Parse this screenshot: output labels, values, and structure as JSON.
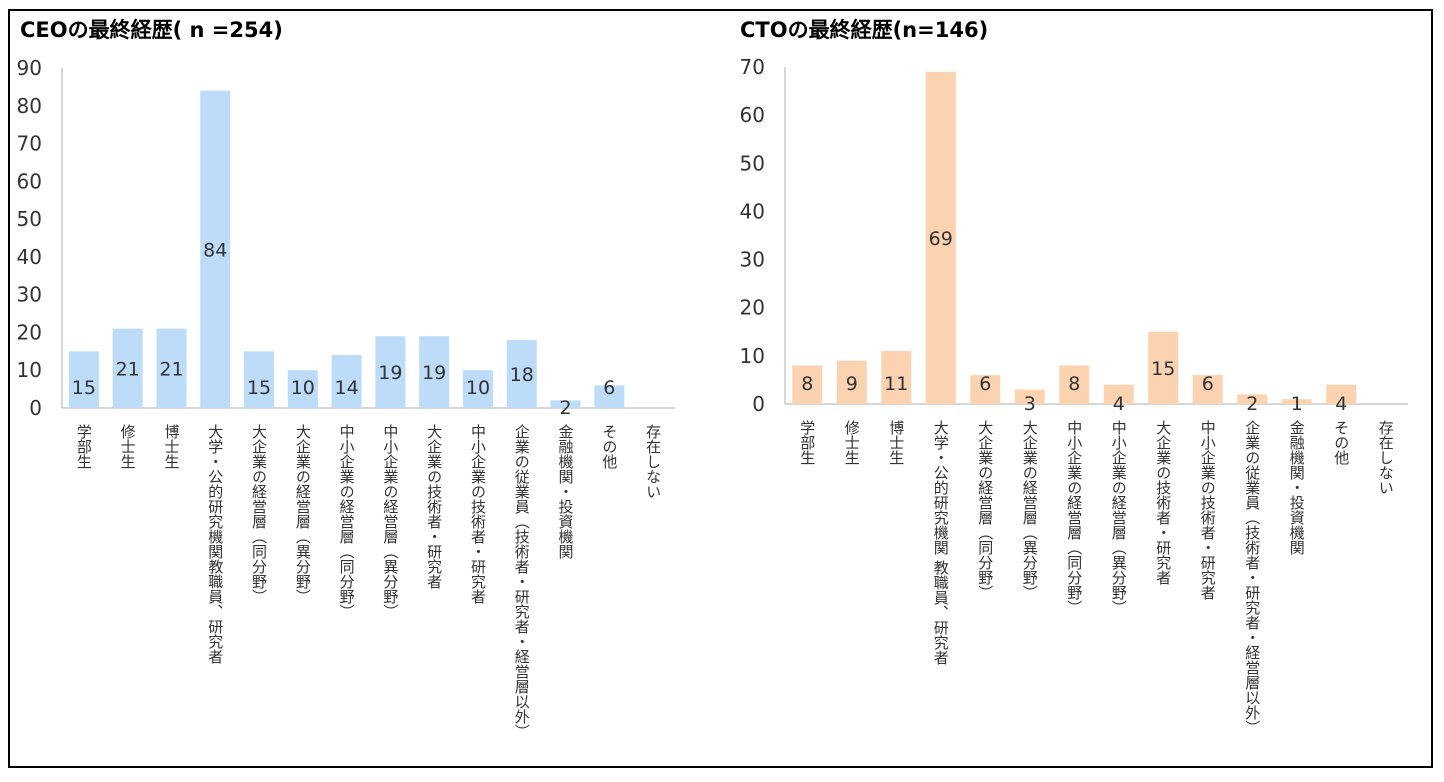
{
  "colors": {
    "ceo_bar": "#bcdcfa",
    "cto_bar": "#fcd3b0",
    "axis": "#c8c8c8",
    "frame": "#000000"
  },
  "chart_data": [
    {
      "type": "bar",
      "title": "CEOの最終経歴( n =254)",
      "ylim": [
        0,
        90
      ],
      "yticks": [
        0,
        10,
        20,
        30,
        40,
        50,
        60,
        70,
        80,
        90
      ],
      "grid": false,
      "categories": [
        "学部生",
        "修士生",
        "博士生",
        "大学・公的研究機関教職員、研究者",
        "大企業の経営層（同分野）",
        "大企業の経営層（異分野）",
        "中小企業の経営層（同分野）",
        "中小企業の経営層（異分野）",
        "大企業の技術者・研究者",
        "中小企業の技術者・研究者",
        "企業の従業員（技術者・研究者・経営層以外）",
        "金融機関・投資機関",
        "その他",
        "存在しない"
      ],
      "values": [
        15,
        21,
        21,
        84,
        15,
        10,
        14,
        19,
        19,
        10,
        18,
        2,
        6,
        0
      ],
      "data_labels": [
        "15",
        "21",
        "21",
        "84",
        "15",
        "10",
        "14",
        "19",
        "19",
        "10",
        "18",
        "2",
        "6",
        ""
      ]
    },
    {
      "type": "bar",
      "title": "CTOの最終経歴(n=146)",
      "ylim": [
        0,
        70
      ],
      "yticks": [
        0,
        10,
        20,
        30,
        40,
        50,
        60,
        70
      ],
      "grid": false,
      "categories": [
        "学部生",
        "修士生",
        "博士生",
        "大学・公的研究機関 教職員、研究者",
        "大企業の経営層（同分野）",
        "大企業の経営層（異分野）",
        "中小企業の経営層（同分野）",
        "中小企業の経営層（異分野）",
        "大企業の技術者・研究者",
        "中小企業の技術者・研究者",
        "企業の従業員（技術者・研究者・経営層以外）",
        "金融機関・投資機関",
        "その他",
        "存在しない"
      ],
      "values": [
        8,
        9,
        11,
        69,
        6,
        3,
        8,
        4,
        15,
        6,
        2,
        1,
        4,
        0
      ],
      "data_labels": [
        "8",
        "9",
        "11",
        "69",
        "6",
        "3",
        "8",
        "4",
        "15",
        "6",
        "2",
        "1",
        "4",
        ""
      ]
    }
  ]
}
